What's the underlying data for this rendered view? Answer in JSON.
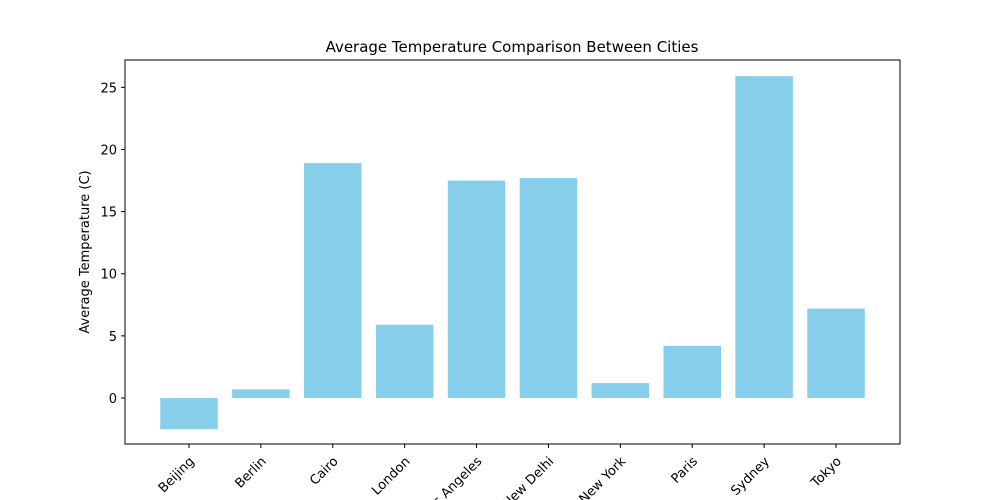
{
  "chart_data": {
    "type": "bar",
    "title": "Average Temperature Comparison Between Cities",
    "xlabel": "",
    "ylabel": "Average Temperature (C)",
    "categories": [
      "Beijing",
      "Berlin",
      "Cairo",
      "London",
      "Los Angeles",
      "New Delhi",
      "New York",
      "Paris",
      "Sydney",
      "Tokyo"
    ],
    "values": [
      -2.5,
      0.7,
      18.9,
      5.9,
      17.5,
      17.7,
      1.2,
      4.2,
      25.9,
      7.2
    ],
    "ylim": [
      -3.7,
      27.2
    ],
    "yticks": [
      0,
      5,
      10,
      15,
      20,
      25
    ],
    "bar_color": "#87CEEB",
    "grid": false,
    "legend": "none",
    "xtick_rotation_deg": 45
  }
}
